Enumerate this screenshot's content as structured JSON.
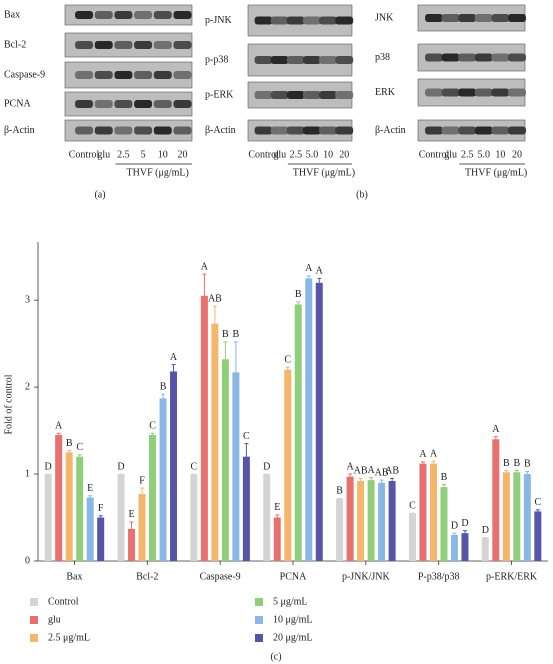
{
  "blot_panels": [
    {
      "rows": [
        "Bax",
        "Bcl-2",
        "Caspase-9",
        "PCNA",
        "β-Actin"
      ],
      "lanes": [
        "Control",
        "glu",
        "2.5",
        "5",
        "10",
        "20"
      ],
      "treatment": "THVF (μg/mL)"
    },
    {
      "rows": [
        "p-JNK",
        "p-p38",
        "p-ERK",
        "β-Actin"
      ],
      "lanes": [
        "Control",
        "glu",
        "2.5",
        "5.0",
        "10",
        "20"
      ],
      "treatment": "THVF (μg/mL)"
    },
    {
      "rows": [
        "JNK",
        "p38",
        "ERK",
        "β-Actin"
      ],
      "lanes": [
        "Control",
        "glu",
        "2.5",
        "5.0",
        "10",
        "20"
      ],
      "treatment": "THVF (μg/mL)"
    }
  ],
  "panel_labels": [
    "(a)",
    "(b)",
    "(c)"
  ],
  "chart_data": {
    "type": "bar",
    "y_label": "Fold of control",
    "categories": [
      "Bax",
      "Bcl-2",
      "Caspase-9",
      "PCNA",
      "p-JNK/JNK",
      "P-p38/p38",
      "p-ERK/ERK"
    ],
    "ylim": [
      0,
      3.6
    ],
    "yticks": [
      0,
      1,
      2,
      3
    ],
    "series": [
      {
        "name": "Control",
        "color": "#d4d4d4",
        "values": [
          1.0,
          1.0,
          1.0,
          1.0,
          0.72,
          0.55,
          0.27
        ],
        "errors": [
          0,
          0,
          0,
          0,
          0,
          0,
          0
        ],
        "letters": [
          "D",
          "D",
          "C",
          "D",
          "B",
          "C",
          "D"
        ]
      },
      {
        "name": "glu",
        "color": "#e8706f",
        "values": [
          1.45,
          0.37,
          3.05,
          0.5,
          0.97,
          1.12,
          1.4
        ],
        "errors": [
          0.02,
          0.08,
          0.25,
          0.03,
          0.03,
          0.02,
          0.03
        ],
        "letters": [
          "A",
          "E",
          "A",
          "E",
          "A",
          "A",
          "A"
        ]
      },
      {
        "name": "2.5 μg/mL",
        "color": "#f5b56b",
        "values": [
          1.25,
          0.77,
          2.73,
          2.2,
          0.92,
          1.12,
          1.02
        ],
        "errors": [
          0.02,
          0.07,
          0.2,
          0.03,
          0.03,
          0.03,
          0.02
        ],
        "letters": [
          "B",
          "F",
          "AB",
          "C",
          "AB",
          "A",
          "B"
        ]
      },
      {
        "name": "5 μg/mL",
        "color": "#8fcf7a",
        "values": [
          1.2,
          1.45,
          2.32,
          2.95,
          0.93,
          0.85,
          1.02
        ],
        "errors": [
          0.02,
          0.02,
          0.2,
          0.03,
          0.03,
          0.03,
          0.02
        ],
        "letters": [
          "C",
          "C",
          "B",
          "B",
          "A",
          "B",
          "B"
        ]
      },
      {
        "name": "10 μg/mL",
        "color": "#8ab8e6",
        "values": [
          0.73,
          1.87,
          2.17,
          3.25,
          0.9,
          0.3,
          1.0
        ],
        "errors": [
          0.02,
          0.05,
          0.35,
          0.03,
          0.03,
          0.02,
          0.03
        ],
        "letters": [
          "E",
          "B",
          "B",
          "A",
          "AB",
          "D",
          "B"
        ]
      },
      {
        "name": "20 μg/mL",
        "color": "#5655a8",
        "values": [
          0.5,
          2.18,
          1.2,
          3.2,
          0.92,
          0.32,
          0.57
        ],
        "errors": [
          0.02,
          0.08,
          0.15,
          0.05,
          0.03,
          0.03,
          0.02
        ],
        "letters": [
          "F",
          "A",
          "C",
          "A",
          "AB",
          "D",
          "C"
        ]
      }
    ]
  }
}
